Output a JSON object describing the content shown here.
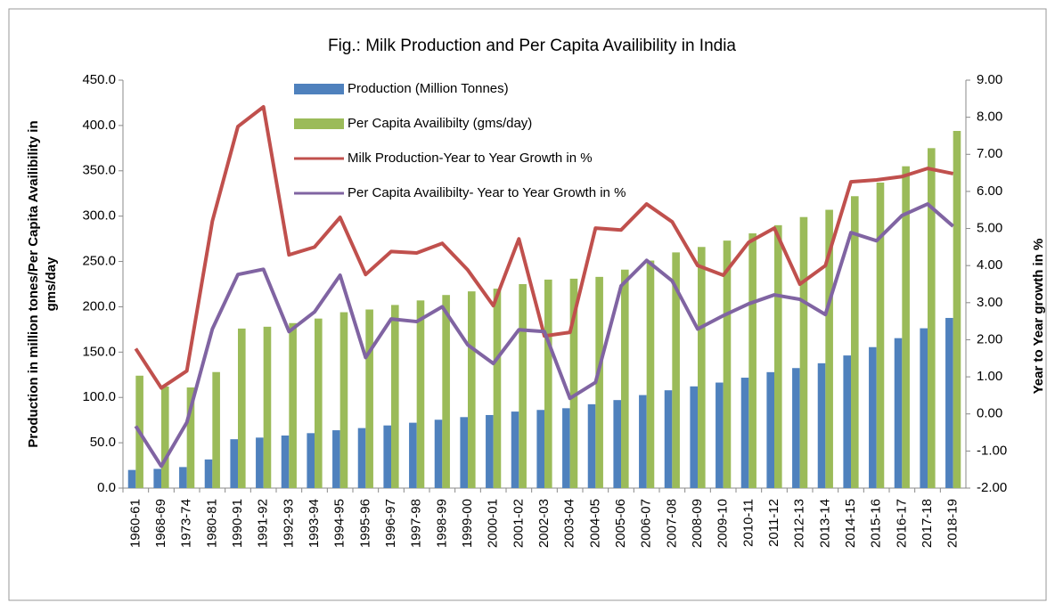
{
  "chart_data": {
    "type": "bar-line",
    "title": "Fig.: Milk Production and Per Capita Availibility in India",
    "ylabel": [
      "Production in million tones/Per Capita Availibility in",
      "gms/day"
    ],
    "y2label": "Year to Year growth in %",
    "legend": "top-left",
    "grid": false,
    "categories": [
      "1960-61",
      "1968-69",
      "1973-74",
      "1980-81",
      "1990-91",
      "1991-92",
      "1992-93",
      "1993-94",
      "1994-95",
      "1995-96",
      "1996-97",
      "1997-98",
      "1998-99",
      "1999-00",
      "2000-01",
      "2001-02",
      "2002-03",
      "2003-04",
      "2004-05",
      "2005-06",
      "2006-07",
      "2007-08",
      "2008-09",
      "2009-10",
      "2010-11",
      "2011-12",
      "2012-13",
      "2013-14",
      "2014-15",
      "2015-16",
      "2016-17",
      "2017-18",
      "2018-19"
    ],
    "series": [
      {
        "name": "Production (Million Tonnes)",
        "type": "bar",
        "color": "#4f81bd",
        "values": [
          20,
          21.2,
          23.2,
          31.6,
          53.9,
          55.7,
          58,
          60.6,
          63.8,
          66.2,
          69.1,
          72.1,
          75.4,
          78.3,
          80.6,
          84.4,
          86.2,
          88.1,
          92.5,
          97.1,
          102.6,
          107.9,
          112.2,
          116.4,
          121.8,
          127.9,
          132.4,
          137.7,
          146.3,
          155.5,
          165.4,
          176.3,
          187.7
        ]
      },
      {
        "name": "Per Capita Availibilty (gms/day)",
        "type": "bar",
        "color": "#9bbb59",
        "values": [
          124,
          112,
          111,
          128,
          176,
          178,
          182,
          187,
          194,
          197,
          202,
          207,
          213,
          217,
          220,
          225,
          230,
          231,
          233,
          241,
          251,
          260,
          266,
          273,
          281,
          290,
          299,
          307,
          322,
          337,
          355,
          375,
          394
        ]
      },
      {
        "name": "Milk Production-Year to Year Growth in %",
        "type": "line",
        "axis": "y2",
        "color": "#c0504d",
        "values": [
          1.76,
          0.7,
          1.16,
          5.2,
          7.75,
          8.28,
          4.29,
          4.5,
          5.3,
          3.76,
          4.38,
          4.34,
          4.6,
          3.88,
          2.92,
          4.72,
          2.1,
          2.2,
          5.01,
          4.96,
          5.66,
          5.18,
          4.0,
          3.74,
          4.63,
          5.01,
          3.5,
          4.0,
          6.26,
          6.31,
          6.4,
          6.62,
          6.48
        ]
      },
      {
        "name": "Per Capita Availibilty- Year to Year Growth in %",
        "type": "line",
        "axis": "y2",
        "color": "#8064a2",
        "values": [
          -0.33,
          -1.41,
          -0.23,
          2.29,
          3.76,
          3.9,
          2.22,
          2.75,
          3.74,
          1.52,
          2.56,
          2.49,
          2.89,
          1.86,
          1.36,
          2.27,
          2.22,
          0.42,
          0.85,
          3.45,
          4.14,
          3.59,
          2.29,
          2.65,
          2.97,
          3.21,
          3.09,
          2.68,
          4.89,
          4.67,
          5.35,
          5.66,
          5.06
        ]
      }
    ],
    "ylim": [
      0,
      450
    ],
    "yticks": [
      {
        "value": 0,
        "label": "0.0"
      },
      {
        "value": 50,
        "label": "50.0"
      },
      {
        "value": 100,
        "label": "100.0"
      },
      {
        "value": 150,
        "label": "150.0"
      },
      {
        "value": 200,
        "label": "200.0"
      },
      {
        "value": 250,
        "label": "250.0"
      },
      {
        "value": 300,
        "label": "300.0"
      },
      {
        "value": 350,
        "label": "350.0"
      },
      {
        "value": 400,
        "label": "400.0"
      },
      {
        "value": 450,
        "label": "450.0"
      }
    ],
    "y2lim": [
      -2,
      9
    ],
    "y2ticks": [
      {
        "value": -2,
        "label": "-2.00"
      },
      {
        "value": -1,
        "label": "-1.00"
      },
      {
        "value": 0,
        "label": "0.00"
      },
      {
        "value": 1,
        "label": "1.00"
      },
      {
        "value": 2,
        "label": "2.00"
      },
      {
        "value": 3,
        "label": "3.00"
      },
      {
        "value": 4,
        "label": "4.00"
      },
      {
        "value": 5,
        "label": "5.00"
      },
      {
        "value": 6,
        "label": "6.00"
      },
      {
        "value": 7,
        "label": "7.00"
      },
      {
        "value": 8,
        "label": "8.00"
      },
      {
        "value": 9,
        "label": "9.00"
      }
    ]
  }
}
